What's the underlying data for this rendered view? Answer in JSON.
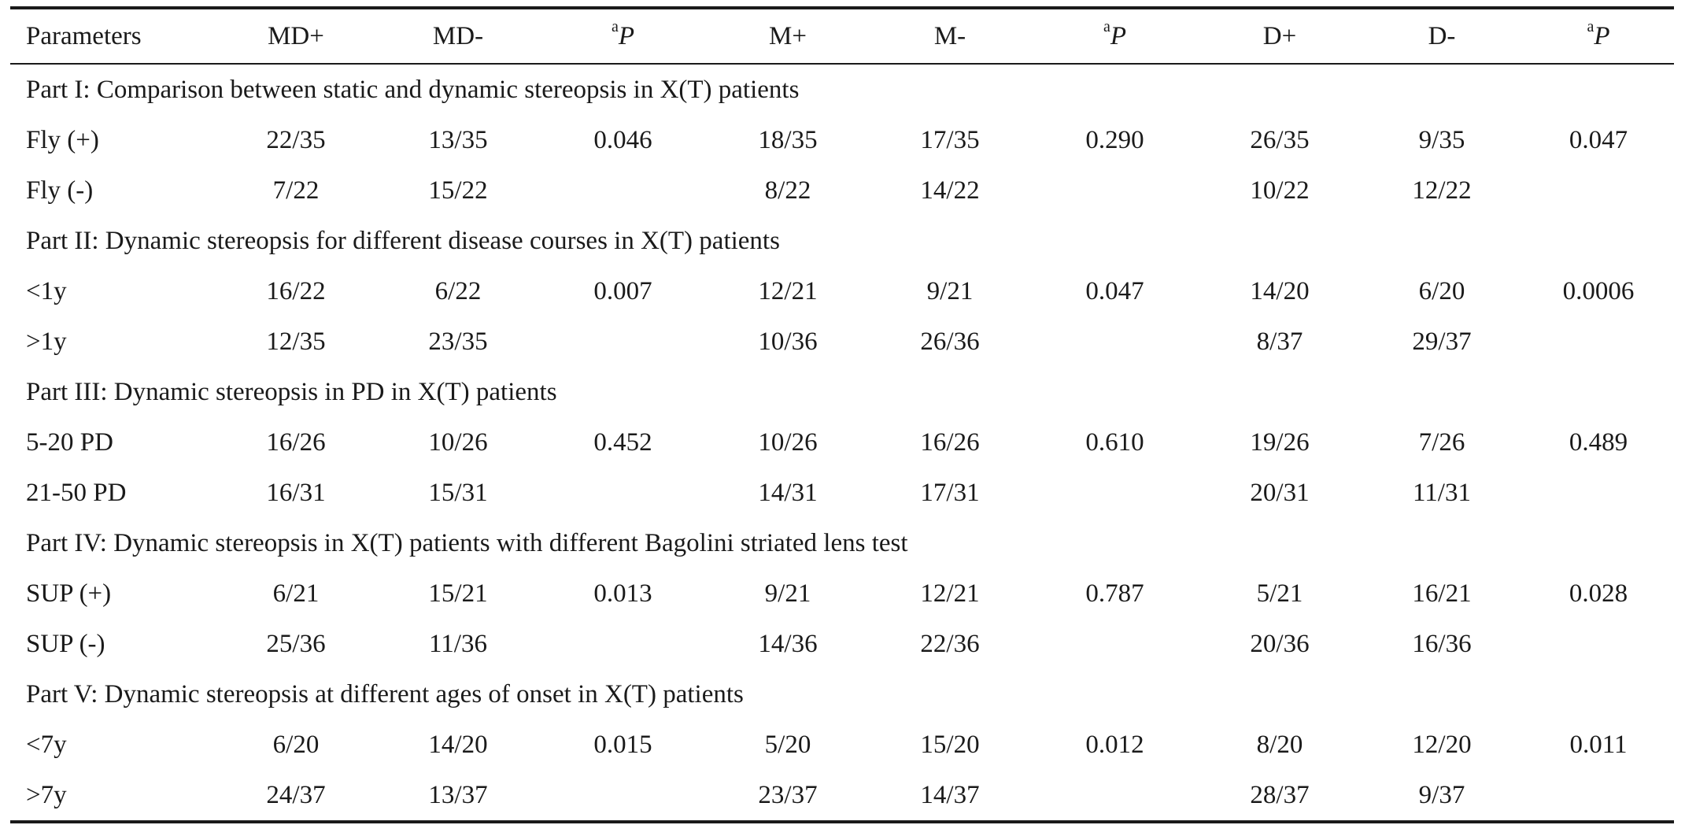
{
  "table": {
    "columns": [
      "Parameters",
      "MD+",
      "MD-",
      {
        "sup": "a",
        "italic": "P"
      },
      "M+",
      "M-",
      {
        "sup": "a",
        "italic": "P"
      },
      "D+",
      "D-",
      {
        "sup": "a",
        "italic": "P"
      }
    ],
    "sections": [
      {
        "title": "Part I: Comparison between static and dynamic stereopsis in X(T) patients",
        "rows": [
          [
            "Fly (+)",
            "22/35",
            "13/35",
            "0.046",
            "18/35",
            "17/35",
            "0.290",
            "26/35",
            "9/35",
            "0.047"
          ],
          [
            "Fly (-)",
            "7/22",
            "15/22",
            "",
            "8/22",
            "14/22",
            "",
            "10/22",
            "12/22",
            ""
          ]
        ]
      },
      {
        "title": "Part II: Dynamic stereopsis for different disease courses in X(T) patients",
        "rows": [
          [
            "<1y",
            "16/22",
            "6/22",
            "0.007",
            "12/21",
            "9/21",
            "0.047",
            "14/20",
            "6/20",
            "0.0006"
          ],
          [
            ">1y",
            "12/35",
            "23/35",
            "",
            "10/36",
            "26/36",
            "",
            "8/37",
            "29/37",
            ""
          ]
        ]
      },
      {
        "title": "Part III: Dynamic stereopsis in PD in X(T) patients",
        "rows": [
          [
            "5-20 PD",
            "16/26",
            "10/26",
            "0.452",
            "10/26",
            "16/26",
            "0.610",
            "19/26",
            "7/26",
            "0.489"
          ],
          [
            "21-50 PD",
            "16/31",
            "15/31",
            "",
            "14/31",
            "17/31",
            "",
            "20/31",
            "11/31",
            ""
          ]
        ]
      },
      {
        "title": "Part IV: Dynamic stereopsis in X(T) patients with different Bagolini striated lens test",
        "rows": [
          [
            "SUP (+)",
            "6/21",
            "15/21",
            "0.013",
            "9/21",
            "12/21",
            "0.787",
            "5/21",
            "16/21",
            "0.028"
          ],
          [
            "SUP (-)",
            "25/36",
            "11/36",
            "",
            "14/36",
            "22/36",
            "",
            "20/36",
            "16/36",
            ""
          ]
        ]
      },
      {
        "title": "Part V: Dynamic stereopsis at different ages of onset in X(T) patients",
        "rows": [
          [
            "<7y",
            "6/20",
            "14/20",
            "0.015",
            "5/20",
            "15/20",
            "0.012",
            "8/20",
            "12/20",
            "0.011"
          ],
          [
            ">7y",
            "24/37",
            "13/37",
            "",
            "23/37",
            "14/37",
            "",
            "28/37",
            "9/37",
            ""
          ]
        ]
      }
    ]
  }
}
